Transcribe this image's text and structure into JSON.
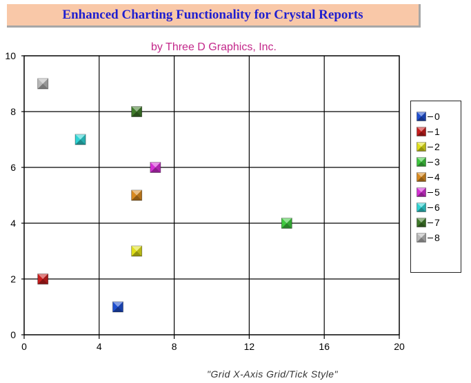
{
  "title": "Enhanced Charting Functionality for Crystal Reports",
  "subtitle": "by Three D Graphics, Inc.",
  "footnote": "\"Grid X-Axis Grid/Tick Style\"",
  "chart_data": {
    "type": "scatter",
    "title": "Enhanced Charting Functionality for Crystal Reports",
    "subtitle": "by Three D Graphics, Inc.",
    "xlabel": "",
    "ylabel": "",
    "xlim": [
      0,
      20
    ],
    "ylim": [
      0,
      10
    ],
    "x_ticks": [
      "0",
      "4",
      "8",
      "12",
      "16",
      "20"
    ],
    "y_ticks": [
      "0",
      "2",
      "4",
      "6",
      "8",
      "10"
    ],
    "grid": "both",
    "legend_position": "right",
    "series": [
      {
        "name": "0",
        "x": 5,
        "y": 1,
        "color": "#1f4fd0"
      },
      {
        "name": "1",
        "x": 1,
        "y": 2,
        "color": "#c81e1e"
      },
      {
        "name": "2",
        "x": 6,
        "y": 3,
        "color": "#e0e01a"
      },
      {
        "name": "3",
        "x": 14,
        "y": 4,
        "color": "#3fc83f"
      },
      {
        "name": "4",
        "x": 6,
        "y": 5,
        "color": "#d98a1f"
      },
      {
        "name": "5",
        "x": 7,
        "y": 6,
        "color": "#d42fd4"
      },
      {
        "name": "6",
        "x": 3,
        "y": 7,
        "color": "#2fd4d4"
      },
      {
        "name": "7",
        "x": 6,
        "y": 8,
        "color": "#3f7a2a"
      },
      {
        "name": "8",
        "x": 1,
        "y": 9,
        "color": "#b8b8b8"
      }
    ]
  }
}
